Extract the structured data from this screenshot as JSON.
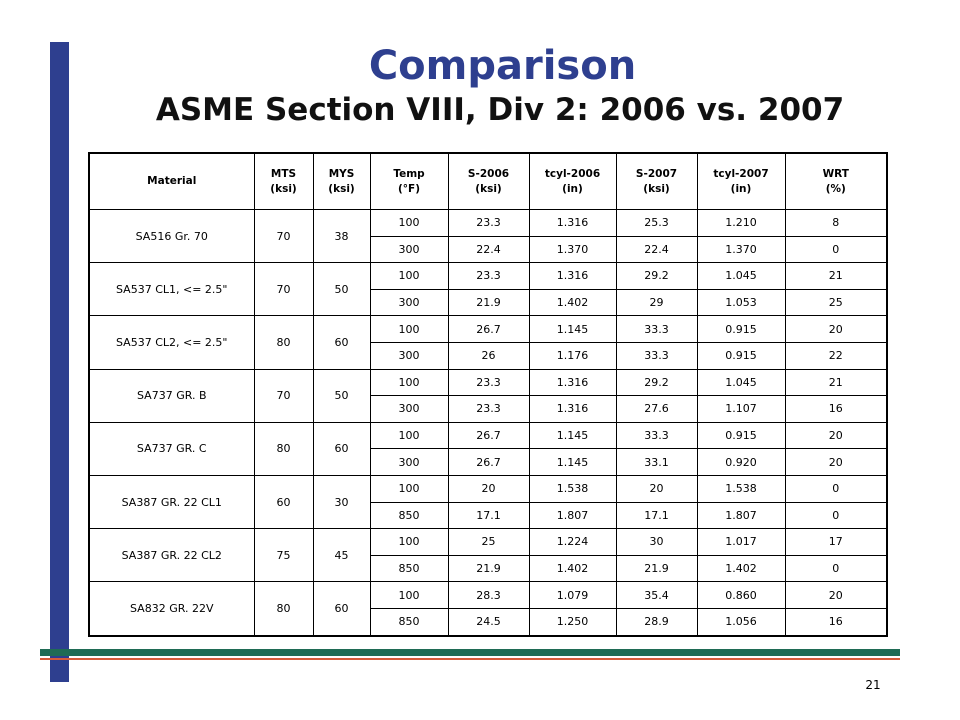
{
  "slide": {
    "title": "Comparison",
    "subtitle": "ASME Section VIII, Div 2: 2006 vs. 2007",
    "page_number": "21"
  },
  "table": {
    "headers": [
      [
        "Material"
      ],
      [
        "MTS",
        "(ksi)"
      ],
      [
        "MYS",
        "(ksi)"
      ],
      [
        "Temp",
        "(°F)"
      ],
      [
        "S-2006",
        "(ksi)"
      ],
      [
        "tcyl-2006",
        "(in)"
      ],
      [
        "S-2007",
        "(ksi)"
      ],
      [
        "tcyl-2007",
        "(in)"
      ],
      [
        "WRT",
        "(%)"
      ]
    ],
    "groups": [
      {
        "material": "SA516 Gr. 70",
        "mts": "70",
        "mys": "38",
        "rows": [
          [
            "100",
            "23.3",
            "1.316",
            "25.3",
            "1.210",
            "8"
          ],
          [
            "300",
            "22.4",
            "1.370",
            "22.4",
            "1.370",
            "0"
          ]
        ]
      },
      {
        "material": "SA537 CL1, <= 2.5\"",
        "mts": "70",
        "mys": "50",
        "rows": [
          [
            "100",
            "23.3",
            "1.316",
            "29.2",
            "1.045",
            "21"
          ],
          [
            "300",
            "21.9",
            "1.402",
            "29",
            "1.053",
            "25"
          ]
        ]
      },
      {
        "material": "SA537 CL2, <= 2.5\"",
        "mts": "80",
        "mys": "60",
        "rows": [
          [
            "100",
            "26.7",
            "1.145",
            "33.3",
            "0.915",
            "20"
          ],
          [
            "300",
            "26",
            "1.176",
            "33.3",
            "0.915",
            "22"
          ]
        ]
      },
      {
        "material": "SA737 GR. B",
        "mts": "70",
        "mys": "50",
        "rows": [
          [
            "100",
            "23.3",
            "1.316",
            "29.2",
            "1.045",
            "21"
          ],
          [
            "300",
            "23.3",
            "1.316",
            "27.6",
            "1.107",
            "16"
          ]
        ]
      },
      {
        "material": "SA737 GR. C",
        "mts": "80",
        "mys": "60",
        "rows": [
          [
            "100",
            "26.7",
            "1.145",
            "33.3",
            "0.915",
            "20"
          ],
          [
            "300",
            "26.7",
            "1.145",
            "33.1",
            "0.920",
            "20"
          ]
        ]
      },
      {
        "material": "SA387 GR. 22 CL1",
        "mts": "60",
        "mys": "30",
        "rows": [
          [
            "100",
            "20",
            "1.538",
            "20",
            "1.538",
            "0"
          ],
          [
            "850",
            "17.1",
            "1.807",
            "17.1",
            "1.807",
            "0"
          ]
        ]
      },
      {
        "material": "SA387 GR. 22 CL2",
        "mts": "75",
        "mys": "45",
        "rows": [
          [
            "100",
            "25",
            "1.224",
            "30",
            "1.017",
            "17"
          ],
          [
            "850",
            "21.9",
            "1.402",
            "21.9",
            "1.402",
            "0"
          ]
        ]
      },
      {
        "material": "SA832 GR. 22V",
        "mts": "80",
        "mys": "60",
        "rows": [
          [
            "100",
            "28.3",
            "1.079",
            "35.4",
            "0.860",
            "20"
          ],
          [
            "850",
            "24.5",
            "1.250",
            "28.9",
            "1.056",
            "16"
          ]
        ]
      }
    ]
  },
  "colors": {
    "accent_blue": "#2e3f8f",
    "rule_green": "#1f6b55",
    "rule_red": "#d65a3a"
  }
}
